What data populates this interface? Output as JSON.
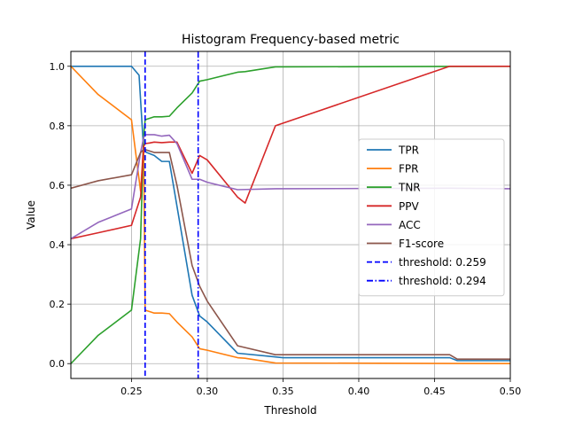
{
  "chart_data": {
    "type": "line",
    "title": "Histogram Frequency-based metric",
    "xlabel": "Threshold",
    "ylabel": "Value",
    "xlim": [
      0.21,
      0.5
    ],
    "ylim": [
      -0.05,
      1.05
    ],
    "xticks": [
      0.25,
      0.3,
      0.35,
      0.4,
      0.45,
      0.5
    ],
    "xtick_labels": [
      "0.25",
      "0.30",
      "0.35",
      "0.40",
      "0.45",
      "0.50"
    ],
    "yticks": [
      0.0,
      0.2,
      0.4,
      0.6,
      0.8,
      1.0
    ],
    "ytick_labels": [
      "0.0",
      "0.2",
      "0.4",
      "0.6",
      "0.8",
      "1.0"
    ],
    "grid": true,
    "legend_position": "center-right",
    "series": [
      {
        "name": "TPR",
        "color": "#1f77b4",
        "style": "solid",
        "x": [
          0.21,
          0.25,
          0.255,
          0.258,
          0.26,
          0.265,
          0.27,
          0.275,
          0.28,
          0.29,
          0.295,
          0.3,
          0.32,
          0.34,
          0.35,
          0.46,
          0.465,
          0.5
        ],
        "y": [
          1.0,
          1.0,
          0.97,
          0.72,
          0.71,
          0.7,
          0.68,
          0.68,
          0.53,
          0.23,
          0.16,
          0.14,
          0.035,
          0.025,
          0.02,
          0.02,
          0.01,
          0.01
        ]
      },
      {
        "name": "FPR",
        "color": "#ff7f0e",
        "style": "solid",
        "x": [
          0.21,
          0.228,
          0.25,
          0.256,
          0.258,
          0.259,
          0.265,
          0.27,
          0.275,
          0.28,
          0.29,
          0.295,
          0.3,
          0.32,
          0.325,
          0.345,
          0.5
        ],
        "y": [
          1.0,
          0.905,
          0.82,
          0.58,
          0.74,
          0.18,
          0.17,
          0.17,
          0.168,
          0.14,
          0.09,
          0.05,
          0.045,
          0.02,
          0.018,
          0.002,
          0.0
        ]
      },
      {
        "name": "TNR",
        "color": "#2ca02c",
        "style": "solid",
        "x": [
          0.21,
          0.228,
          0.25,
          0.256,
          0.258,
          0.259,
          0.265,
          0.27,
          0.275,
          0.28,
          0.29,
          0.295,
          0.3,
          0.32,
          0.325,
          0.345,
          0.5
        ],
        "y": [
          0.0,
          0.095,
          0.18,
          0.42,
          0.76,
          0.82,
          0.83,
          0.83,
          0.832,
          0.86,
          0.91,
          0.95,
          0.955,
          0.98,
          0.982,
          0.998,
          1.0
        ]
      },
      {
        "name": "PPV",
        "color": "#d62728",
        "style": "solid",
        "x": [
          0.21,
          0.228,
          0.25,
          0.256,
          0.258,
          0.259,
          0.262,
          0.265,
          0.27,
          0.275,
          0.28,
          0.29,
          0.295,
          0.3,
          0.32,
          0.325,
          0.345,
          0.46,
          0.5
        ],
        "y": [
          0.42,
          0.44,
          0.465,
          0.56,
          0.73,
          0.74,
          0.742,
          0.745,
          0.743,
          0.745,
          0.745,
          0.64,
          0.7,
          0.685,
          0.56,
          0.54,
          0.8,
          1.0,
          1.0
        ]
      },
      {
        "name": "ACC",
        "color": "#9467bd",
        "style": "solid",
        "x": [
          0.21,
          0.228,
          0.25,
          0.256,
          0.258,
          0.259,
          0.265,
          0.27,
          0.275,
          0.28,
          0.29,
          0.295,
          0.3,
          0.32,
          0.345,
          0.46,
          0.5
        ],
        "y": [
          0.42,
          0.475,
          0.52,
          0.71,
          0.76,
          0.77,
          0.77,
          0.765,
          0.768,
          0.74,
          0.62,
          0.62,
          0.61,
          0.585,
          0.588,
          0.59,
          0.588
        ]
      },
      {
        "name": "F1-score",
        "color": "#8c564b",
        "style": "solid",
        "x": [
          0.21,
          0.228,
          0.25,
          0.256,
          0.258,
          0.259,
          0.265,
          0.27,
          0.275,
          0.28,
          0.29,
          0.295,
          0.3,
          0.32,
          0.345,
          0.46,
          0.465,
          0.5
        ],
        "y": [
          0.59,
          0.615,
          0.635,
          0.71,
          0.72,
          0.72,
          0.71,
          0.71,
          0.71,
          0.6,
          0.33,
          0.26,
          0.21,
          0.06,
          0.03,
          0.03,
          0.015,
          0.015
        ]
      }
    ],
    "thresholds": [
      {
        "name": "threshold: 0.259",
        "x": 0.259,
        "color": "#0000ff",
        "style": "dashed"
      },
      {
        "name": "threshold: 0.294",
        "x": 0.294,
        "color": "#0000ff",
        "style": "dashdot"
      }
    ]
  }
}
